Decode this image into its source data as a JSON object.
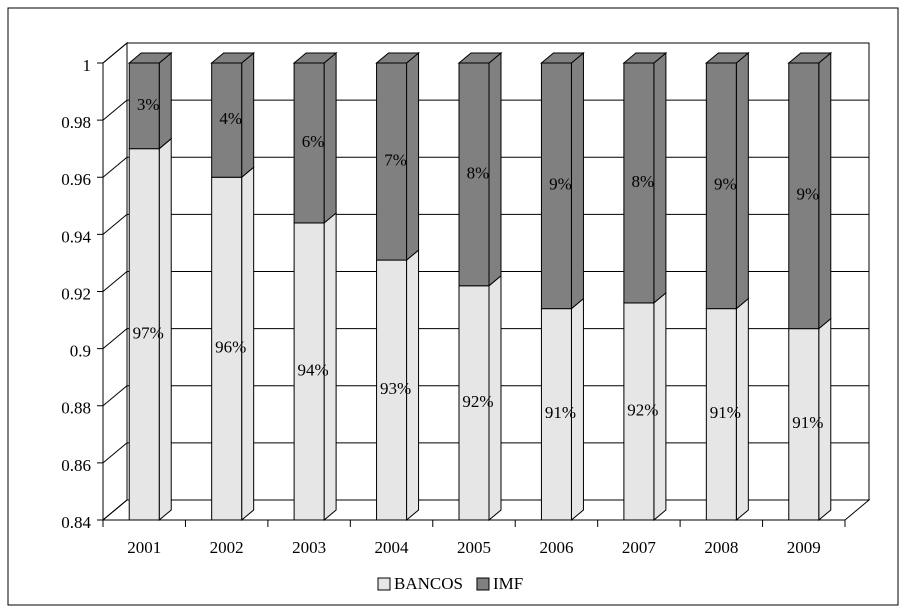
{
  "chart_data": {
    "type": "stacked-bar-3d",
    "categories": [
      "2001",
      "2002",
      "2003",
      "2004",
      "2005",
      "2006",
      "2007",
      "2008",
      "2009"
    ],
    "series": [
      {
        "name": "BANCOS",
        "color": "#e6e6e6",
        "values": [
          0.97,
          0.96,
          0.944,
          0.931,
          0.922,
          0.914,
          0.916,
          0.914,
          0.907
        ],
        "value_labels": [
          "97%",
          "96%",
          "94%",
          "93%",
          "92%",
          "91%",
          "92%",
          "91%",
          "91%"
        ]
      },
      {
        "name": "IMF",
        "color": "#808080",
        "values": [
          0.03,
          0.04,
          0.056,
          0.069,
          0.078,
          0.086,
          0.084,
          0.086,
          0.093
        ],
        "value_labels": [
          "3%",
          "4%",
          "6%",
          "7%",
          "8%",
          "9%",
          "8%",
          "9%",
          "9%"
        ]
      }
    ],
    "ylim": [
      0.84,
      1
    ],
    "yticks": [
      0.84,
      0.86,
      0.88,
      0.9,
      0.92,
      0.94,
      0.96,
      0.98,
      1
    ],
    "grid": true,
    "legend": "bottom"
  }
}
